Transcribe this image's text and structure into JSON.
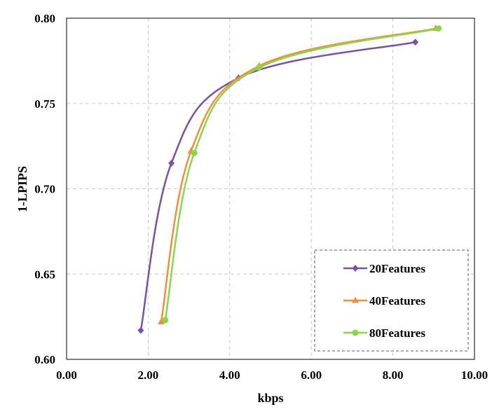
{
  "chart_data": {
    "type": "line",
    "title": "",
    "xlabel": "kbps",
    "ylabel": "1-LPIPS",
    "xlim": [
      0,
      10
    ],
    "ylim": [
      0.6,
      0.8
    ],
    "xticks": [
      "0.00",
      "2.00",
      "4.00",
      "6.00",
      "8.00",
      "10.00"
    ],
    "yticks": [
      "0.60",
      "0.65",
      "0.70",
      "0.75",
      "0.80"
    ],
    "grid": true,
    "legend_position": "bottom-right",
    "series": [
      {
        "name": "20Features",
        "color": "#7b52a3",
        "marker": "diamond",
        "x": [
          1.82,
          2.57,
          4.22,
          8.55
        ],
        "y": [
          0.617,
          0.715,
          0.765,
          0.786
        ]
      },
      {
        "name": "40Features",
        "color": "#f28e3f",
        "marker": "triangle",
        "x": [
          2.32,
          3.05,
          4.72,
          9.05
        ],
        "y": [
          0.622,
          0.722,
          0.772,
          0.794
        ]
      },
      {
        "name": "80Features",
        "color": "#8bd44b",
        "marker": "circle",
        "x": [
          2.42,
          3.13,
          4.72,
          9.12
        ],
        "y": [
          0.623,
          0.721,
          0.771,
          0.794
        ]
      }
    ]
  }
}
